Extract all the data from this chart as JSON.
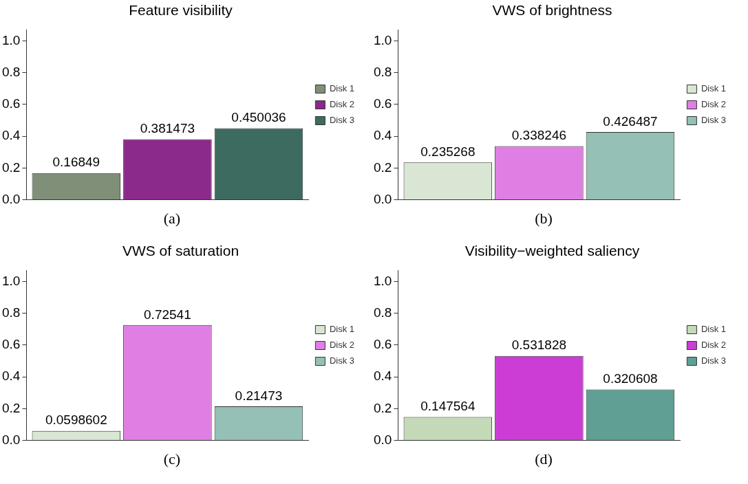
{
  "chart_data": [
    {
      "type": "bar",
      "title": "Feature visibility",
      "categories": [
        null
      ],
      "series": [
        {
          "name": "Disk 1",
          "color": "#7f8f78",
          "values": [
            0.16849
          ]
        },
        {
          "name": "Disk 2",
          "color": "#8b2a8b",
          "values": [
            0.381473
          ]
        },
        {
          "name": "Disk 3",
          "color": "#3d6b60",
          "values": [
            0.450036
          ]
        }
      ],
      "ylim": [
        0,
        1.07
      ],
      "yticks": [
        {
          "value": 0,
          "label": "0.0"
        },
        {
          "value": 0.2,
          "label": "0.2"
        },
        {
          "value": 0.4,
          "label": "0.4"
        },
        {
          "value": 0.6,
          "label": "0.6"
        },
        {
          "value": 0.8,
          "label": "0.8"
        },
        {
          "value": 1,
          "label": "1.0"
        }
      ],
      "data_labels": true,
      "legend": "right",
      "tick_labels": "y",
      "annotations": [
        "(a)"
      ]
    },
    {
      "type": "bar",
      "title": "VWS of brightness",
      "categories": [
        null
      ],
      "series": [
        {
          "name": "Disk 1",
          "color": "#d9e6d3",
          "values": [
            0.235268
          ]
        },
        {
          "name": "Disk 2",
          "color": "#df7fe3",
          "values": [
            0.338246
          ]
        },
        {
          "name": "Disk 3",
          "color": "#94c0b6",
          "values": [
            0.426487
          ]
        }
      ],
      "ylim": [
        0,
        1.07
      ],
      "yticks": [
        {
          "value": 0,
          "label": "0.0"
        },
        {
          "value": 0.2,
          "label": "0.2"
        },
        {
          "value": 0.4,
          "label": "0.4"
        },
        {
          "value": 0.6,
          "label": "0.6"
        },
        {
          "value": 0.8,
          "label": "0.8"
        },
        {
          "value": 1,
          "label": "1.0"
        }
      ],
      "data_labels": true,
      "legend": "right",
      "tick_labels": "y",
      "annotations": [
        "(b)"
      ]
    },
    {
      "type": "bar",
      "title": "VWS of saturation",
      "categories": [
        null
      ],
      "series": [
        {
          "name": "Disk 1",
          "color": "#d9e6d3",
          "values": [
            0.0598602
          ]
        },
        {
          "name": "Disk 2",
          "color": "#df7fe3",
          "values": [
            0.72541
          ]
        },
        {
          "name": "Disk 3",
          "color": "#94c0b6",
          "values": [
            0.21473
          ]
        }
      ],
      "ylim": [
        0,
        1.07
      ],
      "yticks": [
        {
          "value": 0,
          "label": "0.0"
        },
        {
          "value": 0.2,
          "label": "0.2"
        },
        {
          "value": 0.4,
          "label": "0.4"
        },
        {
          "value": 0.6,
          "label": "0.6"
        },
        {
          "value": 0.8,
          "label": "0.8"
        },
        {
          "value": 1,
          "label": "1.0"
        }
      ],
      "data_labels": true,
      "legend": "right",
      "tick_labels": "y",
      "annotations": [
        "(c)"
      ]
    },
    {
      "type": "bar",
      "title": "Visibility−weighted saliency",
      "categories": [
        null
      ],
      "series": [
        {
          "name": "Disk 1",
          "color": "#c4d9b8",
          "values": [
            0.147564
          ]
        },
        {
          "name": "Disk 2",
          "color": "#cc3dd6",
          "values": [
            0.531828
          ]
        },
        {
          "name": "Disk 3",
          "color": "#5f9f94",
          "values": [
            0.320608
          ]
        }
      ],
      "ylim": [
        0,
        1.07
      ],
      "yticks": [
        {
          "value": 0,
          "label": "0.0"
        },
        {
          "value": 0.2,
          "label": "0.2"
        },
        {
          "value": 0.4,
          "label": "0.4"
        },
        {
          "value": 0.6,
          "label": "0.6"
        },
        {
          "value": 0.8,
          "label": "0.8"
        },
        {
          "value": 1,
          "label": "1.0"
        }
      ],
      "data_labels": true,
      "legend": "right",
      "tick_labels": "y",
      "annotations": [
        "(d)"
      ]
    }
  ]
}
